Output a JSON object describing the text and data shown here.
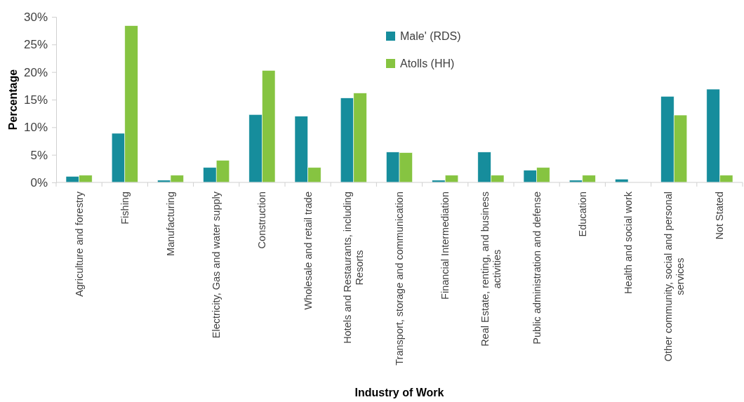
{
  "chart_data": {
    "type": "bar",
    "xlabel": "Industry of Work",
    "ylabel": "Percentage",
    "categories": [
      "Agriculture and forestry",
      "Fishing",
      "Manufacturing",
      "Electricity, Gas and water supply",
      "Construction",
      "Wholesale and retail trade",
      "Hotels and Restaurants, including Resorts",
      "Transport, storage and communication",
      "Financial Intermediation",
      "Real Estate, renting, and business activities",
      "Public administration and defense",
      "Education",
      "Health and social work",
      "Other community, social and personal services",
      "Not Stated"
    ],
    "series": [
      {
        "name": "Male' (RDS)",
        "color": "#168d9c",
        "values": [
          1.1,
          8.9,
          0.4,
          2.7,
          12.3,
          12.0,
          15.3,
          5.5,
          0.4,
          5.5,
          2.2,
          0.4,
          0.6,
          15.6,
          16.9
        ]
      },
      {
        "name": "Atolls (HH)",
        "color": "#86c441",
        "values": [
          1.3,
          28.4,
          1.3,
          4.0,
          20.3,
          2.7,
          16.2,
          5.4,
          1.3,
          1.3,
          2.7,
          1.3,
          null,
          12.2,
          1.3
        ]
      }
    ],
    "ylim": [
      0,
      30
    ],
    "yticks": [
      {
        "value": 0,
        "label": "0%"
      },
      {
        "value": 5,
        "label": "5%"
      },
      {
        "value": 10,
        "label": "10%"
      },
      {
        "value": 15,
        "label": "15%"
      },
      {
        "value": 20,
        "label": "20%"
      },
      {
        "value": 25,
        "label": "25%"
      },
      {
        "value": 30,
        "label": "30%"
      }
    ],
    "grid": false,
    "legend": "top"
  }
}
